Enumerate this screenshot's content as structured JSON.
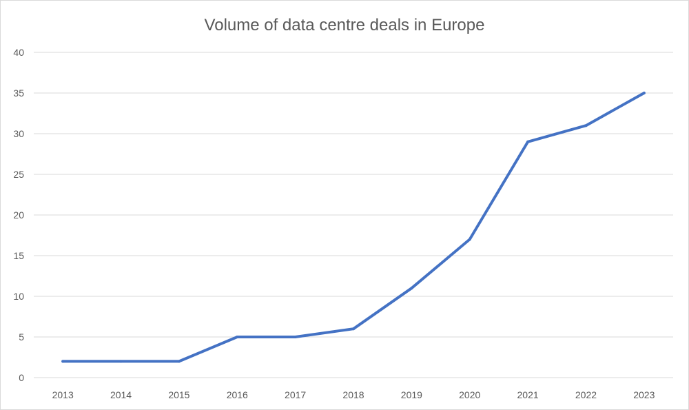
{
  "chart_data": {
    "type": "line",
    "title": "Volume of data centre deals in Europe",
    "xlabel": "",
    "ylabel": "",
    "categories": [
      "2013",
      "2014",
      "2015",
      "2016",
      "2017",
      "2018",
      "2019",
      "2020",
      "2021",
      "2022",
      "2023"
    ],
    "series": [
      {
        "name": "Volume of data centre deals",
        "values": [
          2,
          2,
          2,
          5,
          5,
          6,
          11,
          17,
          29,
          31,
          35
        ],
        "color": "#4472c4"
      }
    ],
    "ylim": [
      0,
      40
    ],
    "yticks": [
      "0",
      "5",
      "10",
      "15",
      "20",
      "25",
      "30",
      "35",
      "40"
    ],
    "grid": true,
    "legend": "none"
  }
}
